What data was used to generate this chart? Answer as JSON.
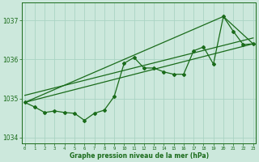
{
  "x": [
    0,
    1,
    2,
    3,
    4,
    5,
    6,
    7,
    8,
    9,
    10,
    11,
    12,
    13,
    14,
    15,
    16,
    17,
    18,
    19,
    20,
    21,
    22,
    23
  ],
  "y_main": [
    1034.9,
    1034.78,
    1034.64,
    1034.68,
    1034.64,
    1034.62,
    1034.44,
    1034.62,
    1034.7,
    1035.05,
    1035.9,
    1036.05,
    1035.78,
    1035.78,
    1035.68,
    1035.62,
    1035.62,
    1036.22,
    1036.32,
    1035.88,
    1037.1,
    1036.72,
    1036.38,
    1036.4
  ],
  "trend1_x": [
    0,
    23
  ],
  "trend1_y": [
    1034.9,
    1036.4
  ],
  "trend2_x": [
    0,
    20,
    23
  ],
  "trend2_y": [
    1034.9,
    1037.1,
    1036.4
  ],
  "trend3_x": [
    0,
    23
  ],
  "trend3_y": [
    1035.08,
    1036.55
  ],
  "ylim": [
    1033.85,
    1037.45
  ],
  "yticks": [
    1034,
    1035,
    1036,
    1037
  ],
  "xlim": [
    -0.3,
    23.3
  ],
  "xticks": [
    0,
    1,
    2,
    3,
    4,
    5,
    6,
    7,
    8,
    9,
    10,
    11,
    12,
    13,
    14,
    15,
    16,
    17,
    18,
    19,
    20,
    21,
    22,
    23
  ],
  "line_color": "#1a6b1a",
  "bg_color": "#cce8dc",
  "grid_color": "#aad4c4",
  "xlabel": "Graphe pression niveau de la mer (hPa)",
  "marker": "D",
  "marker_size": 2.0,
  "line_width": 0.9
}
